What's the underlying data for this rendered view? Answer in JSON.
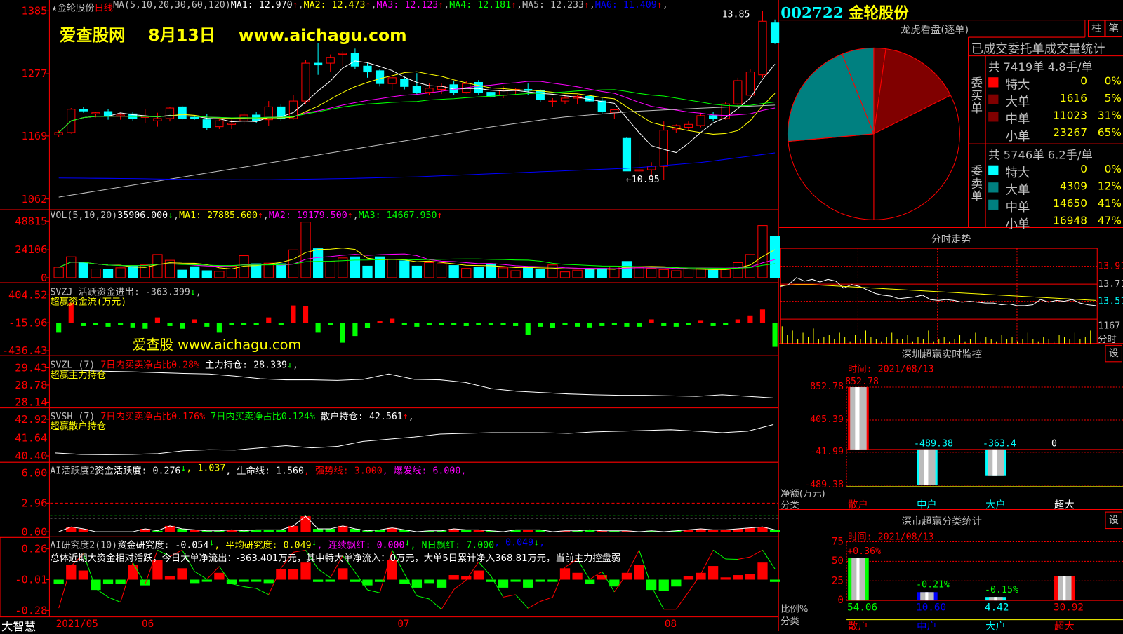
{
  "main": {
    "stock_name": "★金轮股份",
    "period": "日线",
    "ma_label": "MA(5,10,20,30,60,120)",
    "ma_values": [
      {
        "label": "MA1: 12.970",
        "arrow": "↑",
        "color": "#ffffff"
      },
      {
        "label": "MA2: 12.473",
        "arrow": "↑",
        "color": "#ffff00"
      },
      {
        "label": "MA3: 12.123",
        "arrow": "↑",
        "color": "#ff00ff"
      },
      {
        "label": "MA4: 12.181",
        "arrow": "↑",
        "color": "#00ff00"
      },
      {
        "label": "MA5: 12.233",
        "arrow": "↑",
        "color": "#c0c0c0"
      },
      {
        "label": "MA6: 11.409",
        "arrow": "↑",
        "color": "#0000ff"
      }
    ],
    "watermark": "爱查股网    8月13日    www.aichagu.com",
    "high_label": "13.85",
    "low_label": "←10.95",
    "y_ticks": [
      "1385",
      "1277",
      "1169",
      "1062"
    ],
    "candles": [
      [
        11.72,
        11.8,
        11.68,
        11.76
      ],
      [
        11.76,
        12.18,
        11.74,
        12.16
      ],
      [
        12.16,
        12.2,
        12.1,
        12.13
      ],
      [
        12.08,
        12.12,
        12.02,
        12.1
      ],
      [
        12.12,
        12.16,
        11.98,
        12.04
      ],
      [
        12.04,
        12.1,
        11.98,
        12.06
      ],
      [
        12.08,
        12.12,
        11.96,
        12.0
      ],
      [
        12.02,
        12.16,
        11.92,
        12.04
      ],
      [
        11.96,
        12.1,
        11.86,
        12.0
      ],
      [
        12.0,
        12.2,
        11.95,
        12.18
      ],
      [
        12.2,
        12.22,
        11.98,
        12.0
      ],
      [
        12.02,
        12.05,
        11.98,
        12.0
      ],
      [
        11.98,
        12.08,
        11.8,
        11.84
      ],
      [
        11.86,
        12.0,
        11.82,
        11.96
      ],
      [
        11.9,
        11.98,
        11.82,
        11.92
      ],
      [
        11.96,
        12.1,
        11.9,
        12.06
      ],
      [
        12.06,
        12.12,
        11.92,
        11.96
      ],
      [
        11.98,
        12.3,
        11.88,
        12.2
      ],
      [
        12.2,
        12.24,
        11.96,
        12.0
      ],
      [
        12.0,
        12.4,
        11.98,
        12.3
      ],
      [
        12.3,
        13.0,
        12.25,
        12.95
      ],
      [
        12.95,
        13.3,
        12.75,
        12.92
      ],
      [
        12.95,
        13.1,
        12.8,
        13.05
      ],
      [
        13.1,
        13.15,
        12.9,
        13.12
      ],
      [
        13.12,
        13.2,
        12.85,
        12.9
      ],
      [
        12.9,
        12.95,
        12.7,
        12.8
      ],
      [
        12.82,
        12.85,
        12.55,
        12.6
      ],
      [
        12.6,
        12.75,
        12.48,
        12.7
      ],
      [
        12.68,
        12.72,
        12.5,
        12.55
      ],
      [
        12.55,
        12.78,
        12.4,
        12.45
      ],
      [
        12.45,
        12.6,
        12.4,
        12.52
      ],
      [
        12.5,
        12.6,
        12.42,
        12.55
      ],
      [
        12.58,
        12.65,
        12.4,
        12.45
      ],
      [
        12.45,
        12.65,
        12.43,
        12.6
      ],
      [
        12.62,
        12.66,
        12.4,
        12.45
      ],
      [
        12.45,
        12.55,
        12.35,
        12.38
      ],
      [
        12.4,
        12.55,
        12.35,
        12.48
      ],
      [
        12.48,
        12.52,
        12.4,
        12.5
      ],
      [
        12.5,
        12.6,
        12.4,
        12.48
      ],
      [
        12.48,
        12.5,
        12.28,
        12.32
      ],
      [
        12.3,
        12.35,
        12.2,
        12.3
      ],
      [
        12.3,
        12.4,
        12.25,
        12.35
      ],
      [
        12.35,
        12.4,
        12.25,
        12.38
      ],
      [
        12.38,
        12.4,
        12.28,
        12.3
      ],
      [
        12.3,
        12.35,
        12.08,
        12.12
      ],
      [
        12.1,
        12.15,
        12.0,
        12.15
      ],
      [
        11.66,
        11.68,
        11.1,
        11.1
      ],
      [
        11.1,
        11.45,
        11.05,
        11.12
      ],
      [
        11.12,
        11.25,
        11.0,
        11.18
      ],
      [
        11.18,
        11.95,
        10.95,
        11.8
      ],
      [
        11.82,
        11.9,
        11.75,
        11.88
      ],
      [
        11.85,
        11.95,
        11.8,
        11.9
      ],
      [
        11.88,
        12.1,
        11.85,
        12.05
      ],
      [
        12.05,
        12.12,
        11.95,
        12.0
      ],
      [
        12.0,
        12.28,
        11.98,
        12.25
      ],
      [
        12.25,
        12.7,
        12.2,
        12.65
      ],
      [
        12.4,
        12.85,
        12.35,
        12.8
      ],
      [
        12.75,
        13.85,
        12.7,
        13.67
      ],
      [
        13.64,
        13.7,
        13.28,
        13.3
      ]
    ],
    "ma60": [
      10.65,
      10.85,
      11.05,
      11.25,
      11.45,
      11.65,
      11.85,
      12.02,
      12.12,
      12.18,
      12.23
    ],
    "ma120": [
      10.98,
      10.97,
      10.95,
      10.95,
      10.97,
      11.0,
      11.05,
      11.1,
      11.15,
      11.25,
      11.41
    ]
  },
  "vol": {
    "label": "VOL(5,10,20)",
    "values_text": [
      {
        "label": " 35906.000",
        "arrow": "↓",
        "color": "#ffffff",
        "arrow_color": "#00ff00"
      },
      {
        "label": "MA1: 27885.600",
        "arrow": "↑",
        "color": "#ffff00",
        "arrow_color": "#ff0000"
      },
      {
        "label": "MA2: 19179.500",
        "arrow": "↑",
        "color": "#ff00ff",
        "arrow_color": "#ff0000"
      },
      {
        "label": "MA3: 14667.950",
        "arrow": "↑",
        "color": "#00ff00",
        "arrow_color": "#ff0000"
      }
    ],
    "y_ticks": [
      "48815",
      "24106",
      "0"
    ],
    "values": [
      9000,
      18000,
      13000,
      7500,
      7000,
      8500,
      10000,
      11000,
      20000,
      15000,
      6500,
      9500,
      6000,
      5500,
      10000,
      19000,
      12000,
      12500,
      12000,
      24000,
      48000,
      25000,
      14000,
      17000,
      18000,
      10000,
      18000,
      16000,
      14500,
      10000,
      13000,
      12000,
      10500,
      8000,
      9000,
      12000,
      8500,
      6000,
      9000,
      7000,
      11000,
      5000,
      6500,
      7000,
      8000,
      9500,
      14000,
      9000,
      8000,
      7000,
      6000,
      7500,
      8000,
      6500,
      7000,
      13000,
      20000,
      45000,
      35906
    ]
  },
  "svzj": {
    "label": "SVZJ  活跃资金进出: -363.399",
    "arrow": "↓",
    "subtitle": "超赢资金流(万元)",
    "watermark": "爱查股 www.aichagu.com",
    "y_ticks": [
      "404.52",
      "-15.96",
      "-436.43"
    ],
    "values": [
      -150,
      300,
      -50,
      -40,
      -60,
      -40,
      -70,
      -90,
      80,
      -50,
      -90,
      50,
      -60,
      -150,
      -30,
      -40,
      -20,
      80,
      -40,
      260,
      250,
      -150,
      -40,
      -300,
      -200,
      -80,
      30,
      60,
      -30,
      -60,
      -20,
      -40,
      -30,
      -50,
      -40,
      -30,
      -30,
      -50,
      -180,
      -60,
      -80,
      -40,
      -60,
      -70,
      -50,
      -30,
      -60,
      -60,
      50,
      -50,
      -60,
      -30,
      40,
      -50,
      -40,
      50,
      110,
      200,
      -363
    ]
  },
  "svzl": {
    "label": "SVZL (7)",
    "ratio": "7日内买卖净占比0.28%",
    "hold": "主力持仓: 28.339",
    "arrow": "↓",
    "subtitle": "超赢主力持仓",
    "y_ticks": [
      "29.43",
      "28.78",
      "28.14"
    ],
    "values": [
      29.35,
      29.33,
      29.3,
      29.28,
      29.25,
      29.22,
      29.2,
      29.12,
      29.02,
      28.98,
      28.98,
      28.96,
      29.0,
      29.2,
      29.0,
      28.98,
      28.88,
      28.65,
      28.55,
      28.5,
      28.45,
      28.42,
      28.4,
      28.4,
      28.38,
      28.36,
      28.42,
      28.36,
      28.3
    ]
  },
  "svsh": {
    "label": "SVSH (7)",
    "ratio1": "7日内买卖净占比0.176%",
    "ratio2": "7日内买卖净占比0.124%",
    "hold": "散户持仓: 42.561",
    "arrow": "↑",
    "subtitle": "超赢散户持仓",
    "y_ticks": [
      "42.92",
      "41.64",
      "40.40"
    ],
    "values": [
      40.6,
      40.5,
      40.48,
      40.5,
      40.55,
      40.75,
      40.82,
      40.8,
      40.95,
      41.1,
      40.95,
      41.05,
      41.4,
      41.55,
      41.7,
      41.9,
      41.95,
      42.0,
      42.0,
      42.0,
      41.95,
      42.05,
      42.1,
      42.15,
      42.2,
      42.1,
      42.0,
      42.1,
      42.56
    ]
  },
  "ai1": {
    "label": "AI活跃度2",
    "items": [
      {
        "label": " 资金活跃度: 0.276",
        "arrow": "↓",
        "color": "#ffffff"
      },
      {
        "label": ", 1.037",
        "arrow": "",
        "color": "#ffff00"
      },
      {
        "label": ", 生命线: 1.560",
        "arrow": "",
        "color": "#ffffff"
      },
      {
        "label": ", 强势线: 3.000",
        "arrow": "",
        "color": "#ff0000"
      },
      {
        "label": ", 爆发线: 6.000,",
        "arrow": "",
        "color": "#ff00ff"
      }
    ],
    "y_ticks": [
      "6.00",
      "2.96",
      "0.00"
    ],
    "values": [
      0,
      0.5,
      0.3,
      0,
      0,
      0,
      0,
      0.3,
      -0.1,
      0.6,
      -0.3,
      0.2,
      -0.1,
      -0.1,
      0.2,
      -0.1,
      -0.2,
      -0.2,
      -0.2,
      0.6,
      1.6,
      -0.3,
      -0.3,
      0.6,
      -0.3,
      -0.1,
      -0.2,
      0.4,
      -0.2,
      0,
      -0.1,
      -0.1,
      0.3,
      -0.2,
      0.2,
      -0.1,
      0,
      -0.2,
      0.2,
      -0.2,
      0,
      0.1,
      -0.1,
      -0.2,
      0.1,
      -0.1,
      0.1,
      0,
      -0.1,
      0,
      -0.1,
      0.2,
      0.3,
      0.2,
      0.2,
      0.3,
      0.4,
      0.5,
      -0.2
    ]
  },
  "ai2": {
    "label": "AI研究度2(10)",
    "items": [
      {
        "label": " 资金研究度: -0.054",
        "arrow": "↓",
        "color": "#ffffff"
      },
      {
        "label": ", 平均研究度: 0.049",
        "arrow": "↓",
        "color": "#ffff00"
      },
      {
        "label": ", 连续飘红: 0.000",
        "arrow": "↓",
        "color": "#ff00ff"
      },
      {
        "label": ", N日飘红: 7.000",
        "arrow": "",
        "color": "#00ff00"
      },
      {
        "label": ", 0.049",
        "arrow": "↓",
        "color": "#0000ff"
      },
      {
        "label": ",",
        "arrow": "",
        "color": "#0000ff"
      }
    ],
    "summary": "总体近期大资金相对活跃，今日大单净流出：-363.401万元，其中特大单净流入：0万元，大单5日累计净入368.81万元，当前主力控盘弱",
    "y_ticks": [
      "0.26",
      "-0.01",
      "-0.28"
    ],
    "values": [
      -0.05,
      0.12,
      0.07,
      -0.1,
      -0.05,
      -0.05,
      0.12,
      -0.06,
      0.16,
      0.02,
      0.09,
      -0.04,
      -0.02,
      0.05,
      -0.05,
      -0.02,
      -0.02,
      -0.04,
      0.08,
      0.08,
      0.14,
      -0.03,
      -0.02,
      0.09,
      -0.03,
      -0.06,
      -0.03,
      0.16,
      -0.05,
      -0.08,
      -0.04,
      -0.08,
      0.03,
      0.02,
      0.07,
      -0.03,
      -0.08,
      -0.02,
      -0.08,
      -0.02,
      -0.02,
      0.09,
      0.05,
      -0.05,
      0.03,
      -0.07,
      0.05,
      0.12,
      -0.1,
      -0.11,
      -0.07,
      0.02,
      0.05,
      0.11,
      0.01,
      0.03,
      0.04,
      0.14,
      -0.03
    ]
  },
  "date_axis": {
    "brand": "大智慧",
    "labels": [
      "2021/05",
      "06",
      "07",
      "08"
    ]
  },
  "right": {
    "code": "002722",
    "name": "金轮股份",
    "longhu": {
      "title": "龙虎看盘(逐单)",
      "btn_bar": "柱",
      "btn_pen": "笔",
      "stats_title": "已成交委托单成交量统计",
      "buy": {
        "side": "委买单",
        "summary": "共 7419单 4.8手/单",
        "rows": [
          {
            "label": "特大",
            "value": "0",
            "pct": "0%",
            "color": "#ff0000",
            "num": 0
          },
          {
            "label": "大单",
            "value": "1616",
            "pct": "5%",
            "color": "#800000",
            "num": 1616
          },
          {
            "label": "中单",
            "value": "11023",
            "pct": "31%",
            "color": "#800000",
            "num": 11023
          },
          {
            "label": "小单",
            "value": "23267",
            "pct": "65%",
            "color": "#000000",
            "num": 23267
          }
        ]
      },
      "sell": {
        "side": "委卖单",
        "summary": "共 5746单 6.2手/单",
        "rows": [
          {
            "label": "特大",
            "value": "0",
            "pct": "0%",
            "color": "#00ffff",
            "num": 0
          },
          {
            "label": "大单",
            "value": "4309",
            "pct": "12%",
            "color": "#008080",
            "num": 4309
          },
          {
            "label": "中单",
            "value": "14650",
            "pct": "41%",
            "color": "#008080",
            "num": 14650
          },
          {
            "label": "小单",
            "value": "16948",
            "pct": "47%",
            "color": "#000000",
            "num": 16948
          }
        ]
      }
    },
    "intraday": {
      "title": "分时走势",
      "y_labels": [
        "13.91",
        "13.71",
        "13.51",
        "1167",
        "分时"
      ],
      "price": [
        13.68,
        13.7,
        13.78,
        13.74,
        13.76,
        13.73,
        13.76,
        13.74,
        13.66,
        13.7,
        13.68,
        13.64,
        13.6,
        13.58,
        13.57,
        13.54,
        13.55,
        13.56,
        13.58,
        13.53,
        13.52,
        13.53,
        13.52,
        13.5,
        13.51,
        13.5,
        13.49,
        13.49,
        13.47,
        13.48,
        13.46,
        13.46,
        13.47,
        13.53,
        13.5,
        13.52,
        13.51,
        13.53,
        13.49,
        13.47,
        13.46
      ],
      "avg": [
        13.69,
        13.7,
        13.7,
        13.69,
        13.68,
        13.67,
        13.66,
        13.65,
        13.64,
        13.63,
        13.62,
        13.61,
        13.6,
        13.59,
        13.58,
        13.57,
        13.56,
        13.55,
        13.54,
        13.53,
        13.52
      ],
      "volume": [
        8,
        4,
        6,
        2,
        5,
        3,
        7,
        2,
        3,
        4,
        2,
        5,
        3,
        1,
        4,
        2,
        6,
        3,
        2,
        1,
        3,
        5,
        2,
        2,
        4,
        1,
        3,
        2,
        6,
        1,
        2,
        3,
        1,
        2,
        4,
        1,
        2,
        5,
        1,
        3,
        2,
        1,
        4,
        2,
        3,
        1,
        2,
        5,
        2,
        1,
        3,
        2,
        1,
        4,
        3,
        2,
        5,
        2,
        3,
        6
      ]
    },
    "monitor": {
      "title": "深圳超赢实时监控",
      "gear_label": "设",
      "time": "时间: 2021/08/13",
      "y_ticks": [
        "852.78",
        "405.39",
        "-41.99",
        "-489.38"
      ],
      "y_axis_label": "净额(万元)",
      "x_axis_label": "分类",
      "range": [
        -489.38,
        852.78
      ],
      "bars": [
        {
          "cat": "散户",
          "value": 852.78,
          "label": "852.78",
          "color": "#ff0000"
        },
        {
          "cat": "中户",
          "value": -489.38,
          "label": "-489.38",
          "color": "#00ffff"
        },
        {
          "cat": "大户",
          "value": -363.4,
          "label": "-363.4",
          "color": "#00ffff"
        },
        {
          "cat": "超大",
          "value": 0,
          "label": "0",
          "color": "#ffffff"
        }
      ]
    },
    "classify": {
      "title": "深市超赢分类统计",
      "gear_label": "设",
      "time": "时间: 2021/08/13",
      "y_ticks": [
        "75",
        "50",
        "25",
        "0"
      ],
      "y_axis_label": "比例%",
      "x_axis_label": "分类",
      "bars": [
        {
          "cat": "散户",
          "value": 54.06,
          "label": "54.06",
          "change": "+0.36%",
          "edge": "#00ff00",
          "cat_color": "#ff0000",
          "val_color": "#00ff00",
          "chg_color": "#ff0000"
        },
        {
          "cat": "中户",
          "value": 10.6,
          "label": "10.60",
          "change": "-0.21%",
          "edge": "#0000ff",
          "cat_color": "#0000ff",
          "val_color": "#0000ff",
          "chg_color": "#00ff00"
        },
        {
          "cat": "大户",
          "value": 4.42,
          "label": "4.42",
          "change": "-0.15%",
          "edge": "#00ffff",
          "cat_color": "#00ffff",
          "val_color": "#00ffff",
          "chg_color": "#00ff00"
        },
        {
          "cat": "超大",
          "value": 30.92,
          "label": "30.92",
          "change": "",
          "edge": "#ff0000",
          "cat_color": "#ff0000",
          "val_color": "#ff0000",
          "chg_color": "#ff0000"
        }
      ]
    }
  }
}
